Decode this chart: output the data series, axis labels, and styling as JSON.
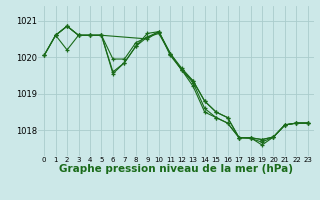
{
  "background_color": "#cce8e8",
  "grid_color": "#aacccc",
  "line_color": "#1a6b1a",
  "xlabel": "Graphe pression niveau de la mer (hPa)",
  "xlabel_fontsize": 7.5,
  "xlim": [
    -0.5,
    23.5
  ],
  "ylim": [
    1017.3,
    1021.4
  ],
  "yticks": [
    1018,
    1019,
    1020,
    1021
  ],
  "xticks": [
    0,
    1,
    2,
    3,
    4,
    5,
    6,
    7,
    8,
    9,
    10,
    11,
    12,
    13,
    14,
    15,
    16,
    17,
    18,
    19,
    20,
    21,
    22,
    23
  ],
  "series": [
    {
      "x": [
        0,
        1,
        2,
        3,
        4,
        5,
        6,
        7,
        8,
        9,
        10,
        11,
        12,
        13,
        14,
        15,
        16,
        17,
        18,
        19,
        20,
        21,
        22,
        23
      ],
      "y": [
        1020.05,
        1020.6,
        1020.85,
        1020.6,
        1020.6,
        1020.6,
        1019.95,
        1019.95,
        1020.4,
        1020.55,
        1020.7,
        1020.1,
        1019.65,
        1019.3,
        1018.6,
        1018.35,
        1018.2,
        1017.8,
        1017.8,
        1017.75,
        1017.82,
        1018.15,
        1018.2,
        1018.2
      ]
    },
    {
      "x": [
        0,
        1,
        2,
        3,
        4,
        5,
        6,
        7,
        8,
        9,
        10,
        11,
        12,
        13,
        14,
        15,
        16,
        17,
        18,
        19,
        20,
        21,
        22,
        23
      ],
      "y": [
        1020.05,
        1020.6,
        1020.85,
        1020.6,
        1020.6,
        1020.6,
        1019.55,
        1019.85,
        1020.3,
        1020.65,
        1020.7,
        1020.05,
        1019.65,
        1019.35,
        1018.8,
        1018.5,
        1018.35,
        1017.8,
        1017.8,
        1017.75,
        1017.82,
        1018.15,
        1018.2,
        1018.2
      ]
    },
    {
      "x": [
        0,
        1,
        2,
        3,
        4,
        5,
        6,
        7,
        8,
        9,
        10,
        11,
        12,
        13,
        14,
        15,
        16,
        17,
        18,
        19,
        20,
        21,
        22,
        23
      ],
      "y": [
        1020.05,
        1020.6,
        1020.2,
        1020.6,
        1020.6,
        1020.6,
        1019.6,
        1019.85,
        1020.3,
        1020.55,
        1020.65,
        1020.1,
        1019.7,
        1019.35,
        1018.8,
        1018.5,
        1018.35,
        1017.8,
        1017.8,
        1017.6,
        1017.82,
        1018.15,
        1018.2,
        1018.2
      ]
    },
    {
      "x": [
        1,
        2,
        3,
        4,
        5,
        9,
        10,
        11,
        12,
        13,
        14,
        15,
        16,
        17,
        18,
        19,
        20,
        21,
        22,
        23
      ],
      "y": [
        1020.6,
        1020.85,
        1020.6,
        1020.6,
        1020.6,
        1020.5,
        1020.7,
        1020.1,
        1019.65,
        1019.2,
        1018.5,
        1018.35,
        1018.2,
        1017.8,
        1017.78,
        1017.68,
        1017.82,
        1018.15,
        1018.2,
        1018.2
      ]
    }
  ]
}
